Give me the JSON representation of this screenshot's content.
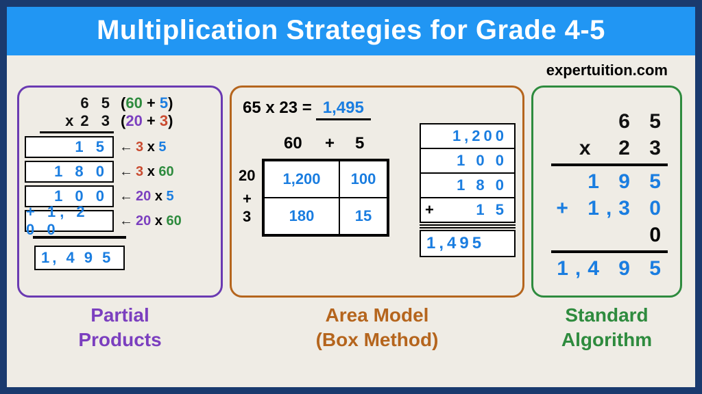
{
  "header": {
    "title": "Multiplication Strategies for Grade 4-5"
  },
  "watermark": "expertuition.com",
  "colors": {
    "border": "#1a3a6e",
    "bg": "#efece5",
    "headerBg": "#2196f3",
    "blue": "#1a7de0",
    "purple": "#7b3fbf",
    "brown": "#b5651d",
    "green": "#2e8b3e",
    "red": "#c94a2f"
  },
  "partial": {
    "caption1": "Partial",
    "caption2": "Products",
    "top1": "6 5",
    "exp1a": "60",
    "exp1b": "5",
    "top2_prefix": "x",
    "top2": "2 3",
    "exp2a": "20",
    "exp2b": "3",
    "rows": [
      {
        "val": "1 5",
        "a": "3",
        "b": "5",
        "ca": "#c94a2f",
        "cb": "#1a7de0"
      },
      {
        "val": "1 8 0",
        "a": "3",
        "b": "60",
        "ca": "#c94a2f",
        "cb": "#2e8b3e"
      },
      {
        "val": "1 0 0",
        "a": "20",
        "b": "5",
        "ca": "#7b3fbf",
        "cb": "#1a7de0"
      },
      {
        "val": "+ 1, 2 0 0",
        "a": "20",
        "b": "60",
        "ca": "#7b3fbf",
        "cb": "#2e8b3e"
      }
    ],
    "total": "1, 4 9 5"
  },
  "area": {
    "caption1": "Area Model",
    "caption2": "(Box Method)",
    "eq_lhs": "65 x 23 =",
    "eq_ans": "1,495",
    "colA": "60",
    "plus": "+",
    "colB": "5",
    "rowA": "20",
    "rowB": "3",
    "c11": "1,200",
    "c12": "100",
    "c21": "180",
    "c22": "15",
    "sum": [
      "1,200",
      "1 0 0",
      "1 8 0"
    ],
    "sum_plus_sign": "+",
    "sum_plus_val": "1 5",
    "total": "1,495"
  },
  "standard": {
    "caption1": "Standard",
    "caption2": "Algorithm",
    "r1": "6 5",
    "r2_prefix": "x",
    "r2": "2 3",
    "r3": "1 9 5",
    "r4_prefix": "+ ",
    "r4": "1,3 0",
    "r4_zero": " 0",
    "r5": "1,4 9 5"
  }
}
